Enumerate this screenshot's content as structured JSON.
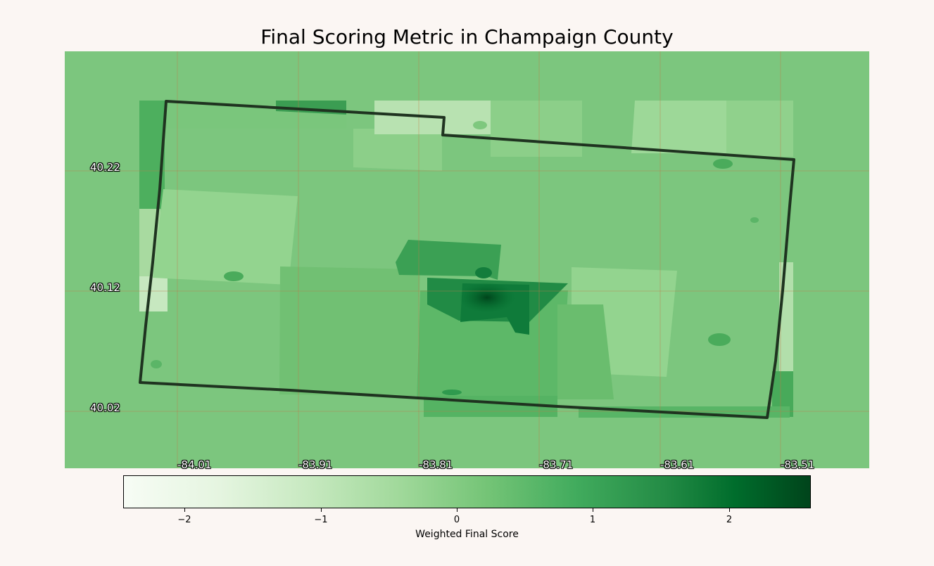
{
  "title": "Final Scoring Metric in Champaign County",
  "map": {
    "lat_ticks": [
      "40.22",
      "40.12",
      "40.02"
    ],
    "lon_ticks": [
      "-84.01",
      "-83.91",
      "-83.81",
      "-83.71",
      "-83.61",
      "-83.51"
    ],
    "background_color": "#7cc67e",
    "border_color": "#1f3320",
    "gridline_color": "#c07a4a"
  },
  "colorbar": {
    "label": "Weighted Final Score",
    "ticks": [
      "−2",
      "−1",
      "0",
      "1",
      "2"
    ],
    "tick_values": [
      -2,
      -1,
      0,
      1,
      2
    ],
    "range": [
      -2.45,
      2.6
    ],
    "colormap": "Greens"
  }
}
